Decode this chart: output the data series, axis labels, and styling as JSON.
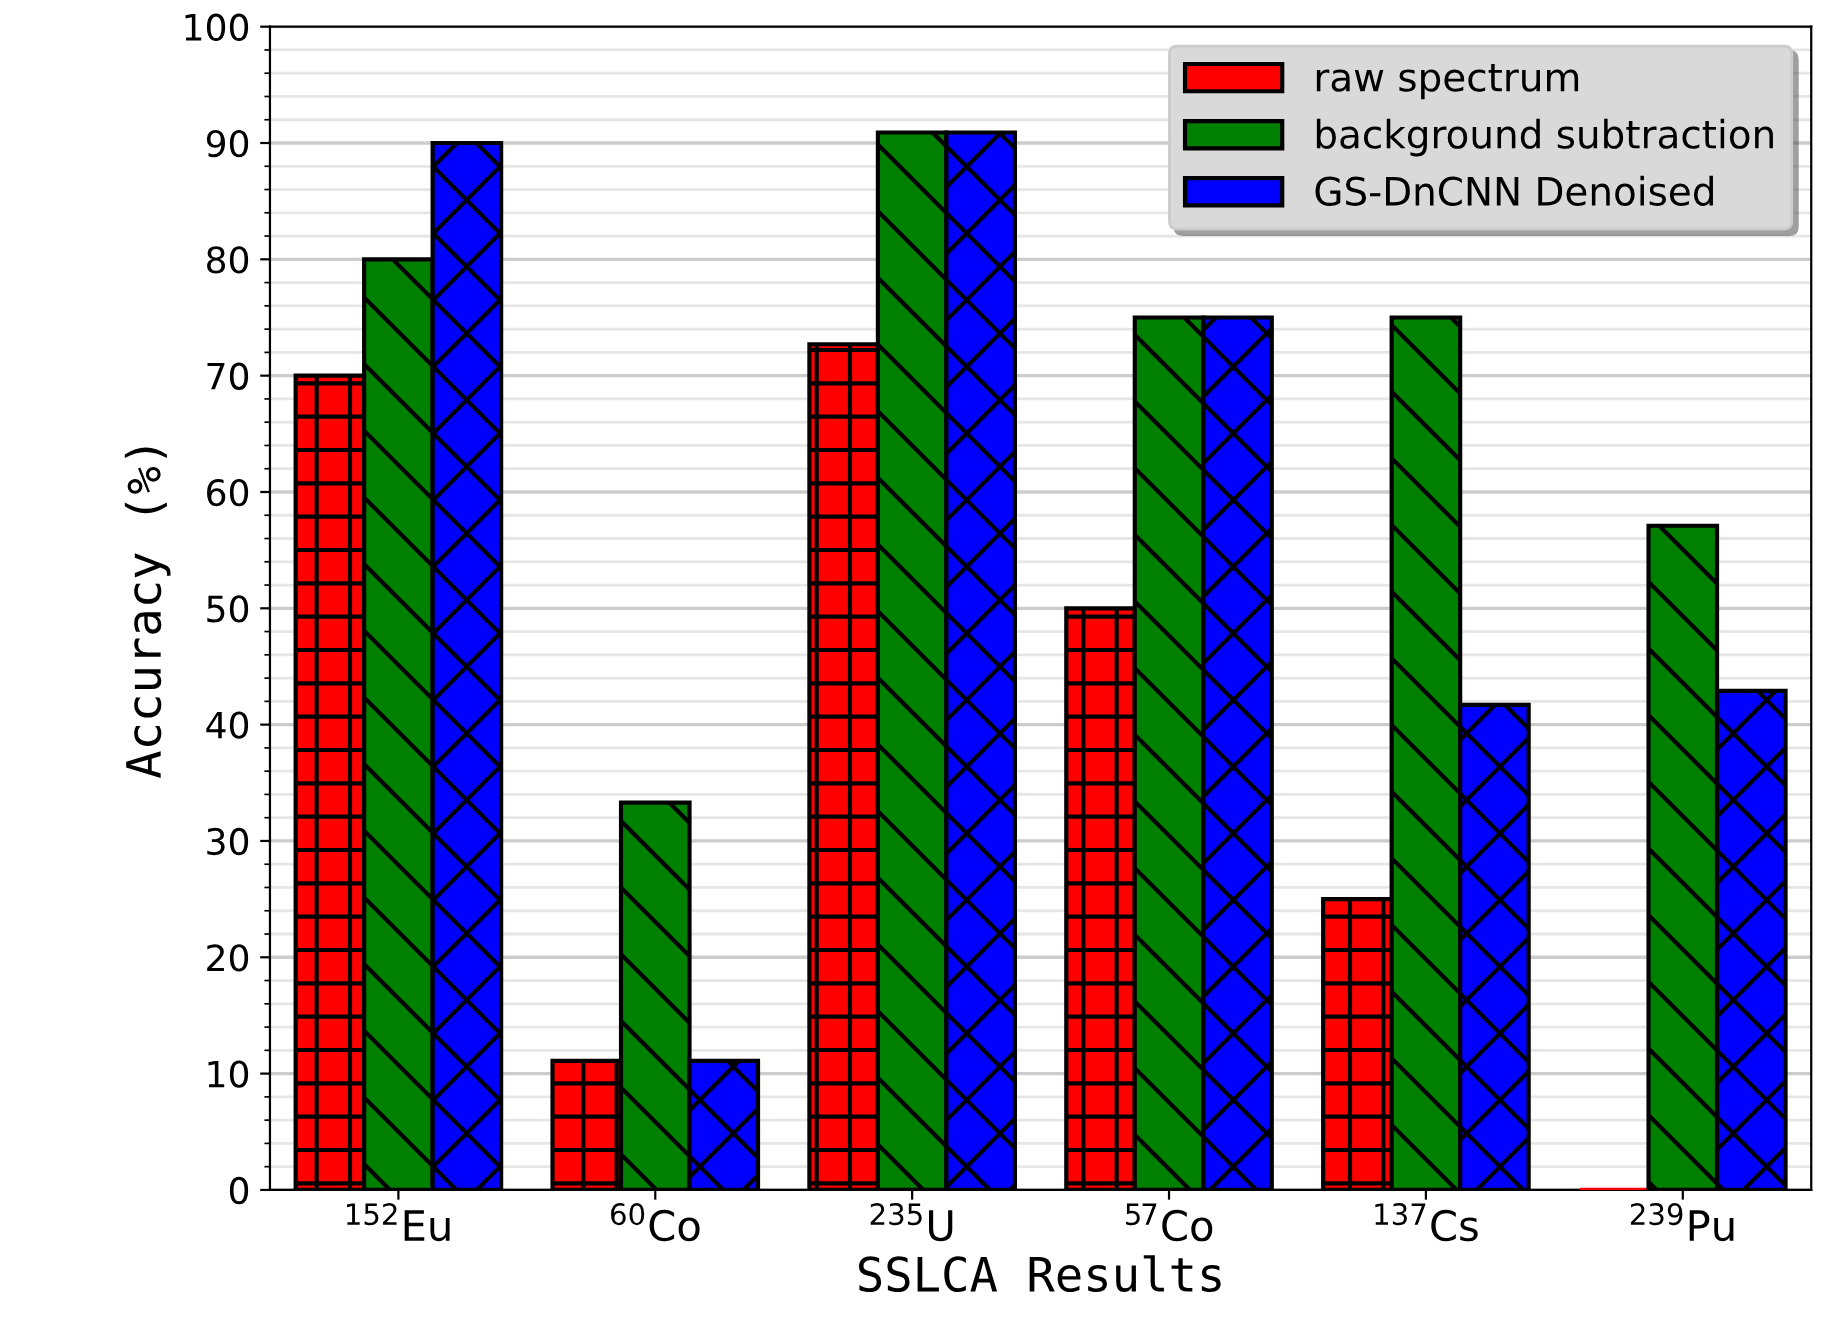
{
  "chart_data": {
    "type": "bar",
    "xlabel": "SSLCA Results",
    "ylabel": "Accuracy (%)",
    "categories": [
      "$^{152}$Eu",
      "$^{60}$Co",
      "$^{235}$U",
      "$^{57}$Co",
      "$^{137}$Cs",
      "$^{239}$Pu"
    ],
    "series": [
      {
        "name": "raw spectrum",
        "color": "#ff0000",
        "values": [
          70,
          11.1,
          72.7,
          50,
          25,
          0
        ]
      },
      {
        "name": "background subtraction",
        "color": "#008000",
        "values": [
          80,
          33.3,
          90.9,
          75,
          75,
          57.1
        ]
      },
      {
        "name": "GS-DnCNN Denoised",
        "color": "#0000ff",
        "values": [
          90,
          11.1,
          90.9,
          75,
          41.7,
          42.9
        ]
      }
    ],
    "ylim": [
      0,
      100
    ],
    "yticks": [
      0,
      10,
      20,
      30,
      40,
      50,
      60,
      70,
      80,
      90,
      100
    ],
    "grid": "y",
    "legend": "top right"
  }
}
